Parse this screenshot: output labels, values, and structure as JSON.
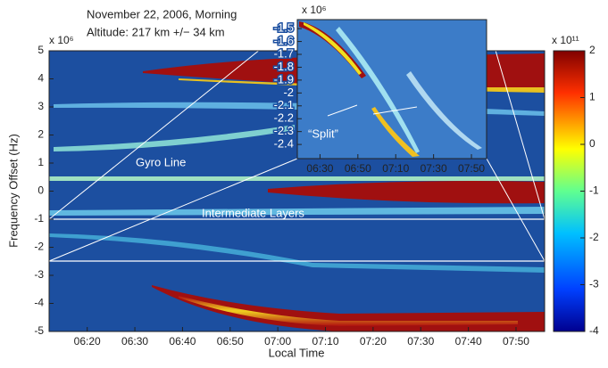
{
  "chart_data": {
    "type": "heatmap",
    "title": "November 22, 2006, Morning",
    "subtitle": "Altitude: 217 km +/− 34 km",
    "x_label": "Local Time",
    "y_label": "Frequency Offset (Hz)",
    "y_scale_label": "x 10⁶",
    "xlim": [
      "06:12",
      "07:56"
    ],
    "xticks": [
      "06:20",
      "06:30",
      "06:40",
      "06:50",
      "07:00",
      "07:10",
      "07:20",
      "07:30",
      "07:40",
      "07:50"
    ],
    "ylim": [
      -5,
      5
    ],
    "yticks": [
      -5,
      -4,
      -3,
      -2,
      -1,
      0,
      1,
      2,
      3,
      4,
      5
    ],
    "colorbar": {
      "scale_label": "x 10¹¹",
      "clim": [
        -4,
        2
      ],
      "ticks": [
        -4,
        -3,
        -2,
        -1,
        0,
        1,
        2
      ]
    },
    "annotations": [
      "Gyro Line",
      "Intermediate Layers",
      "“Split”"
    ],
    "inset": {
      "y_scale_label": "x 10⁶",
      "xlim": [
        "06:18",
        "07:58"
      ],
      "xticks": [
        "06:30",
        "06:50",
        "07:10",
        "07:30",
        "07:50"
      ],
      "ylim": [
        -2.51,
        -1.43
      ],
      "yticks": [
        -1.5,
        -1.6,
        -1.7,
        -1.8,
        -1.9,
        -2,
        -2.1,
        -2.2,
        -2.3,
        -2.4
      ]
    }
  }
}
